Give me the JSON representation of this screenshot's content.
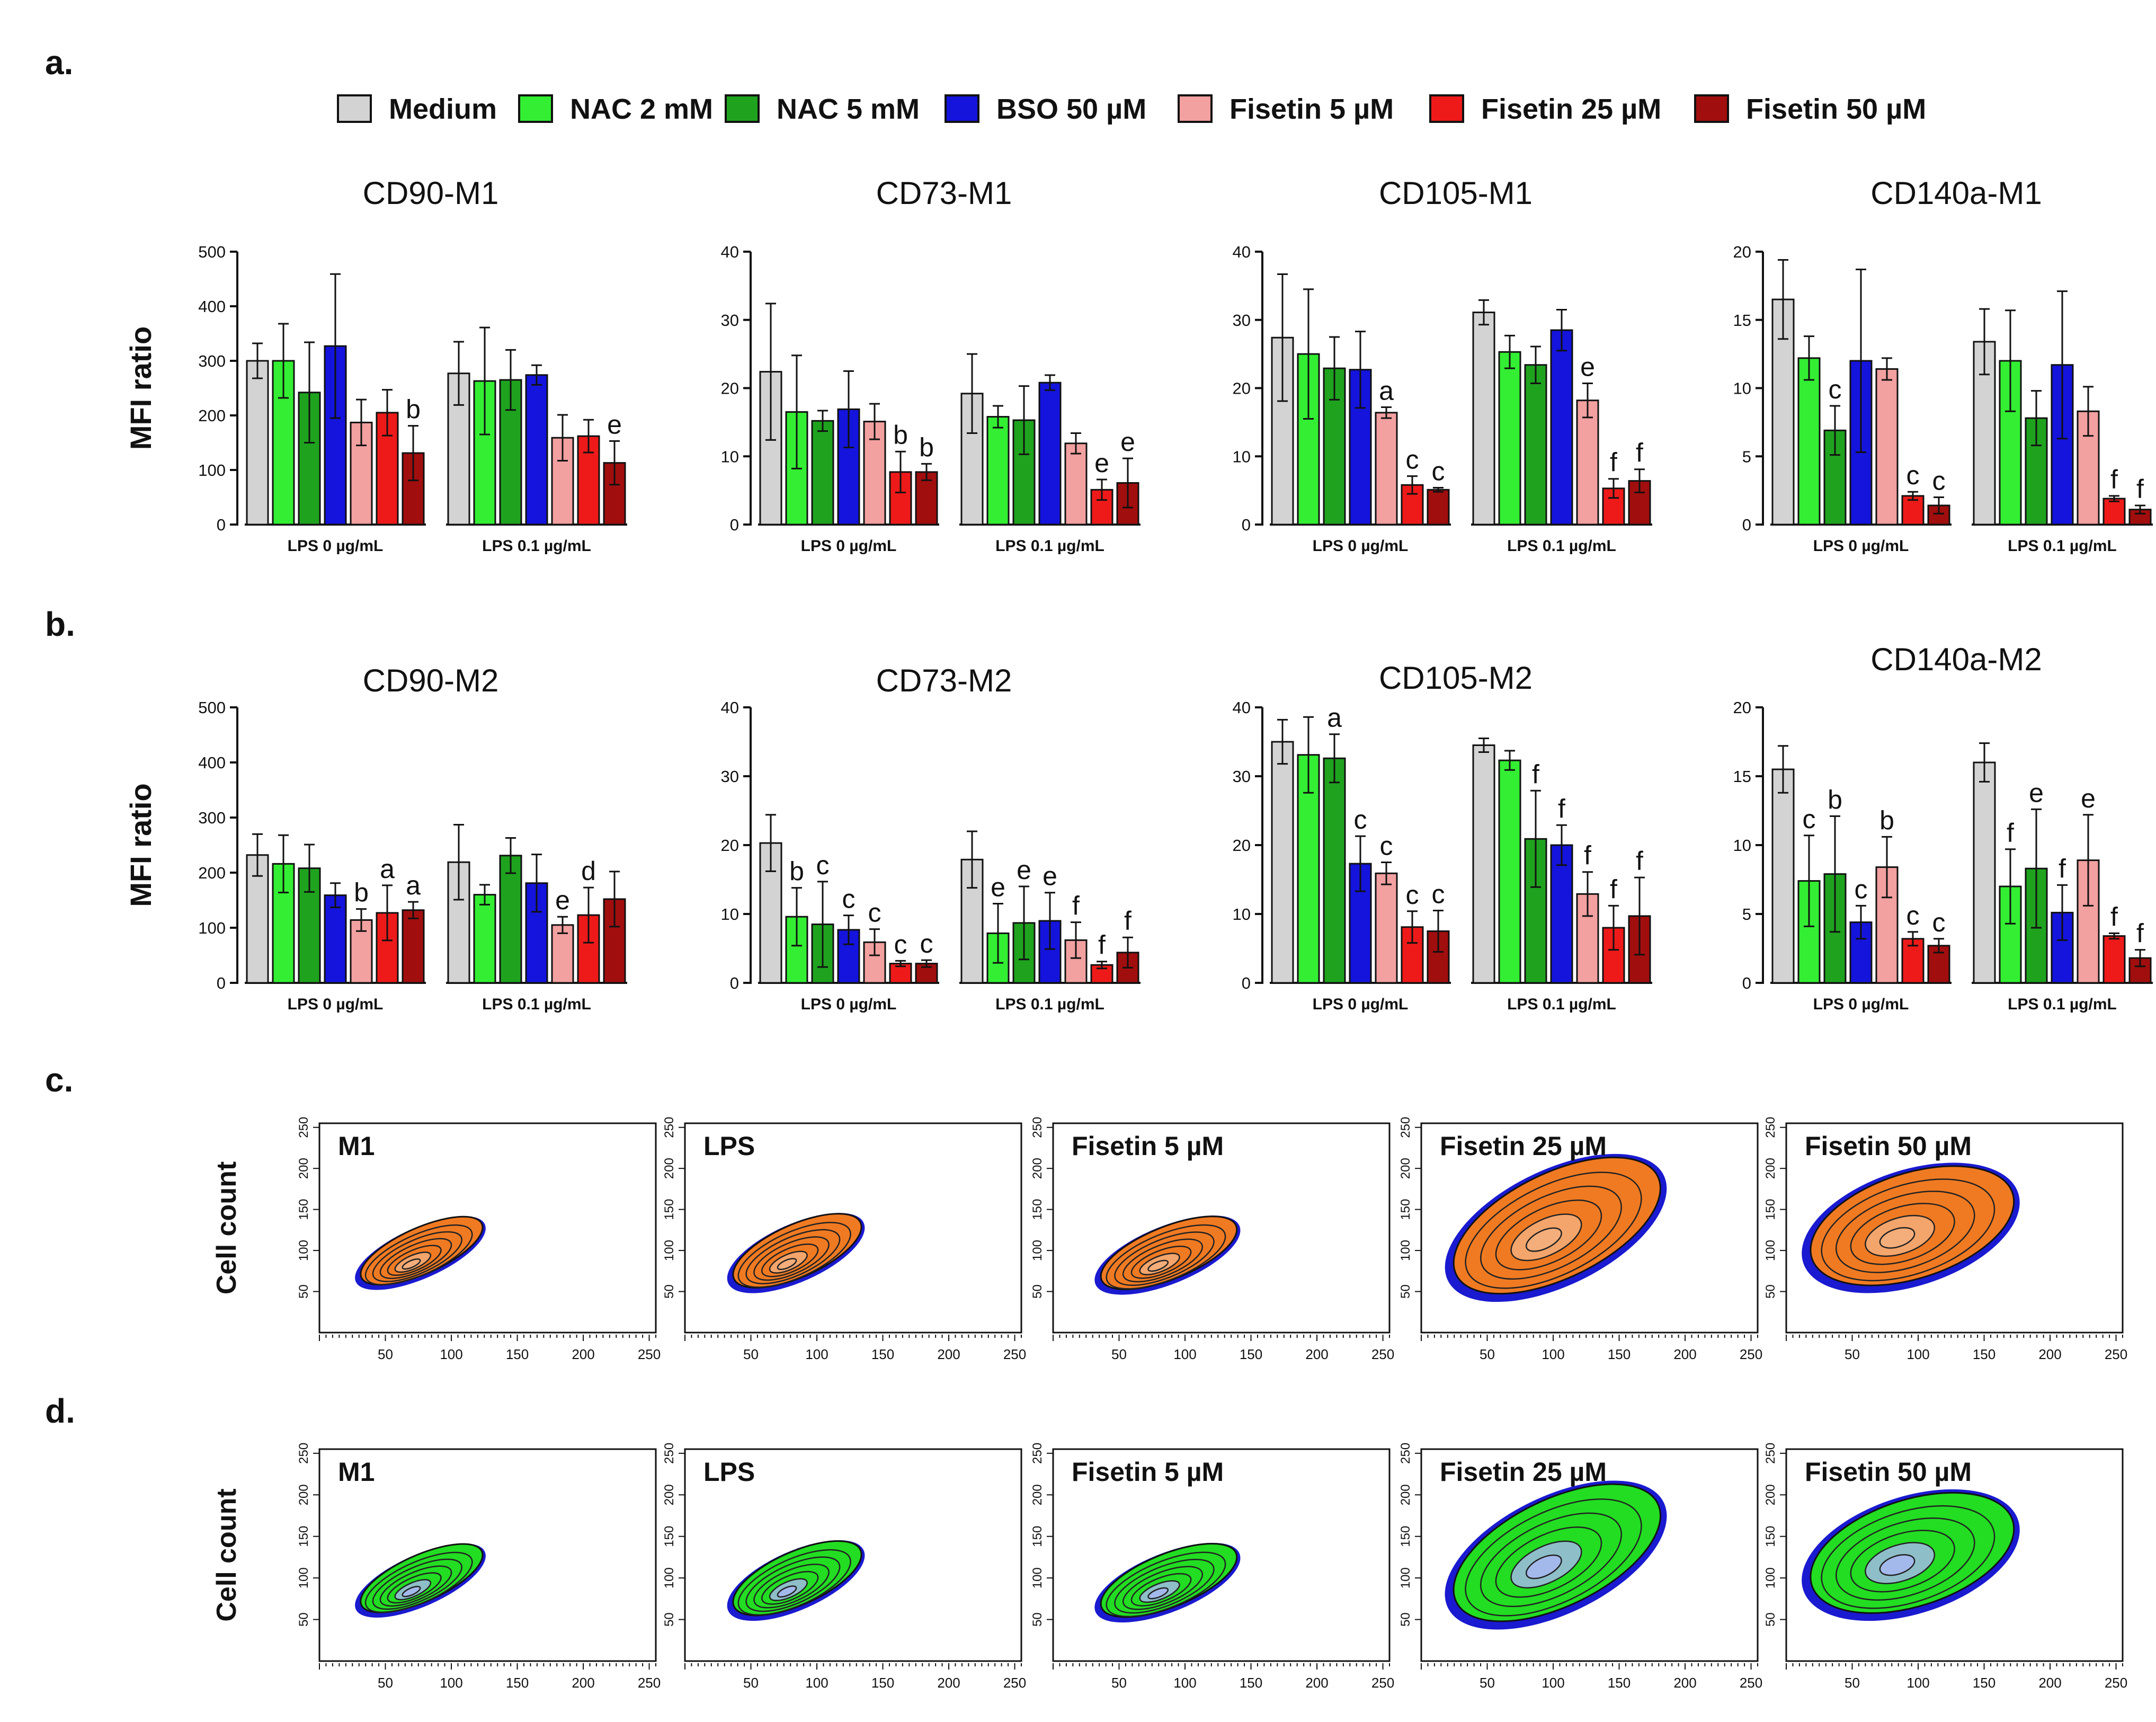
{
  "figure": {
    "panel_labels": [
      "a.",
      "b.",
      "c.",
      "d."
    ],
    "legend": [
      {
        "label": "Medium",
        "color": "#d3d3d3"
      },
      {
        "label": "NAC 2 mM",
        "color": "#33ee33"
      },
      {
        "label": "NAC 5 mM",
        "color": "#1fa31f"
      },
      {
        "label": "BSO 50 µM",
        "color": "#1414dc"
      },
      {
        "label": "Fisetin  5 µM",
        "color": "#f2a0a0"
      },
      {
        "label": "Fisetin  25 µM",
        "color": "#ee1a1a"
      },
      {
        "label": "Fisetin  50 µM",
        "color": "#a10e0e"
      }
    ],
    "bar_ylabel": "MFI ratio",
    "group_labels": [
      "LPS 0 µg/mL",
      "LPS 0.1 µg/mL"
    ],
    "contour_ylabel": "Cell count",
    "contour_y_ticks": [
      "50",
      "100",
      "150",
      "200",
      "250"
    ],
    "contour_x_ticks": [
      "50",
      "100",
      "150",
      "200",
      "250"
    ],
    "contour_titles": [
      "M1",
      "LPS",
      "Fisetin 5 µM",
      "Fisetin 25 µM",
      "Fisetin 50 µM"
    ],
    "contour_colors_c": [
      "#1a1ad0",
      "#f07a22",
      "#f4b080"
    ],
    "contour_colors_d": [
      "#1a1ad0",
      "#22dd22",
      "#aab8f4"
    ]
  },
  "chart_data": [
    {
      "type": "bar",
      "panel": "a",
      "title": "CD90-M1",
      "ylabel": "MFI ratio",
      "ylim": [
        0,
        500
      ],
      "yticks": [
        "0",
        "100",
        "200",
        "300",
        "400",
        "500"
      ],
      "categories": [
        "LPS 0 µg/mL",
        "LPS 0.1 µg/mL"
      ],
      "series": [
        {
          "name": "Medium",
          "values": [
            300,
            277
          ],
          "errors": [
            32,
            58
          ],
          "letters": [
            "",
            ""
          ]
        },
        {
          "name": "NAC 2 mM",
          "values": [
            300,
            263
          ],
          "errors": [
            68,
            98
          ],
          "letters": [
            "",
            ""
          ]
        },
        {
          "name": "NAC 5 mM",
          "values": [
            242,
            265
          ],
          "errors": [
            92,
            55
          ],
          "letters": [
            "",
            ""
          ]
        },
        {
          "name": "BSO 50 µM",
          "values": [
            327,
            274
          ],
          "errors": [
            132,
            18
          ],
          "letters": [
            "",
            ""
          ]
        },
        {
          "name": "Fisetin  5 µM",
          "values": [
            187,
            159
          ],
          "errors": [
            42,
            42
          ],
          "letters": [
            "",
            ""
          ]
        },
        {
          "name": "Fisetin  25 µM",
          "values": [
            205,
            162
          ],
          "errors": [
            42,
            30
          ],
          "letters": [
            "",
            ""
          ]
        },
        {
          "name": "Fisetin  50 µM",
          "values": [
            131,
            113
          ],
          "errors": [
            50,
            40
          ],
          "letters": [
            "b",
            "e"
          ]
        }
      ]
    },
    {
      "type": "bar",
      "panel": "a",
      "title": "CD73-M1",
      "ylabel": "MFI ratio",
      "ylim": [
        0,
        40
      ],
      "yticks": [
        "0",
        "10",
        "20",
        "30",
        "40"
      ],
      "categories": [
        "LPS 0 µg/mL",
        "LPS 0.1 µg/mL"
      ],
      "series": [
        {
          "name": "Medium",
          "values": [
            22.4,
            19.2
          ],
          "errors": [
            10,
            5.8
          ],
          "letters": [
            "",
            ""
          ]
        },
        {
          "name": "NAC 2 mM",
          "values": [
            16.5,
            15.8
          ],
          "errors": [
            8.3,
            1.6
          ],
          "letters": [
            "",
            ""
          ]
        },
        {
          "name": "NAC 5 mM",
          "values": [
            15.2,
            15.3
          ],
          "errors": [
            1.5,
            5
          ],
          "letters": [
            "",
            ""
          ]
        },
        {
          "name": "BSO 50 µM",
          "values": [
            16.9,
            20.8
          ],
          "errors": [
            5.6,
            1.1
          ],
          "letters": [
            "",
            ""
          ]
        },
        {
          "name": "Fisetin  5 µM",
          "values": [
            15.1,
            11.9
          ],
          "errors": [
            2.6,
            1.5
          ],
          "letters": [
            "",
            ""
          ]
        },
        {
          "name": "Fisetin  25 µM",
          "values": [
            7.7,
            5.1
          ],
          "errors": [
            3,
            1.5
          ],
          "letters": [
            "b",
            "e"
          ]
        },
        {
          "name": "Fisetin  50 µM",
          "values": [
            7.7,
            6.1
          ],
          "errors": [
            1.2,
            3.6
          ],
          "letters": [
            "b",
            "e"
          ]
        }
      ]
    },
    {
      "type": "bar",
      "panel": "a",
      "title": "CD105-M1",
      "ylabel": "MFI ratio",
      "ylim": [
        0,
        40
      ],
      "yticks": [
        "0",
        "10",
        "20",
        "30",
        "40"
      ],
      "categories": [
        "LPS 0 µg/mL",
        "LPS 0.1 µg/mL"
      ],
      "series": [
        {
          "name": "Medium",
          "values": [
            27.4,
            31.1
          ],
          "errors": [
            9.3,
            1.8
          ],
          "letters": [
            "",
            ""
          ]
        },
        {
          "name": "NAC 2 mM",
          "values": [
            25.0,
            25.3
          ],
          "errors": [
            9.5,
            2.4
          ],
          "letters": [
            "",
            ""
          ]
        },
        {
          "name": "NAC 5 mM",
          "values": [
            22.9,
            23.4
          ],
          "errors": [
            4.6,
            2.7
          ],
          "letters": [
            "",
            ""
          ]
        },
        {
          "name": "BSO 50 µM",
          "values": [
            22.7,
            28.5
          ],
          "errors": [
            5.6,
            3
          ],
          "letters": [
            "",
            ""
          ]
        },
        {
          "name": "Fisetin  5 µM",
          "values": [
            16.4,
            18.2
          ],
          "errors": [
            0.8,
            2.5
          ],
          "letters": [
            "a",
            "e"
          ]
        },
        {
          "name": "Fisetin  25 µM",
          "values": [
            5.8,
            5.3
          ],
          "errors": [
            1.3,
            1.4
          ],
          "letters": [
            "c",
            "f"
          ]
        },
        {
          "name": "Fisetin  50 µM",
          "values": [
            5.1,
            6.4
          ],
          "errors": [
            0.3,
            1.7
          ],
          "letters": [
            "c",
            "f"
          ]
        }
      ]
    },
    {
      "type": "bar",
      "panel": "a",
      "title": "CD140a-M1",
      "ylabel": "MFI ratio",
      "ylim": [
        0,
        20
      ],
      "yticks": [
        "0",
        "5",
        "10",
        "15",
        "20"
      ],
      "categories": [
        "LPS 0 µg/mL",
        "LPS 0.1 µg/mL"
      ],
      "series": [
        {
          "name": "Medium",
          "values": [
            16.5,
            13.4
          ],
          "errors": [
            2.9,
            2.4
          ],
          "letters": [
            "",
            ""
          ]
        },
        {
          "name": "NAC 2 mM",
          "values": [
            12.2,
            12.0
          ],
          "errors": [
            1.6,
            3.7
          ],
          "letters": [
            "",
            ""
          ]
        },
        {
          "name": "NAC 5 mM",
          "values": [
            6.9,
            7.8
          ],
          "errors": [
            1.8,
            2
          ],
          "letters": [
            "c",
            ""
          ]
        },
        {
          "name": "BSO 50 µM",
          "values": [
            12.0,
            11.7
          ],
          "errors": [
            6.7,
            5.4
          ],
          "letters": [
            "",
            ""
          ]
        },
        {
          "name": "Fisetin  5 µM",
          "values": [
            11.4,
            8.3
          ],
          "errors": [
            0.8,
            1.8
          ],
          "letters": [
            "",
            ""
          ]
        },
        {
          "name": "Fisetin  25 µM",
          "values": [
            2.1,
            1.9
          ],
          "errors": [
            0.3,
            0.2
          ],
          "letters": [
            "c",
            "f"
          ]
        },
        {
          "name": "Fisetin  50 µM",
          "values": [
            1.4,
            1.1
          ],
          "errors": [
            0.6,
            0.3
          ],
          "letters": [
            "c",
            "f"
          ]
        }
      ]
    },
    {
      "type": "bar",
      "panel": "b",
      "title": "CD90-M2",
      "ylabel": "MFI ratio",
      "ylim": [
        0,
        500
      ],
      "yticks": [
        "0",
        "100",
        "200",
        "300",
        "400",
        "500"
      ],
      "categories": [
        "LPS 0 µg/mL",
        "LPS 0.1 µg/mL"
      ],
      "series": [
        {
          "name": "Medium",
          "values": [
            232,
            219
          ],
          "errors": [
            38,
            68
          ],
          "letters": [
            "",
            ""
          ]
        },
        {
          "name": "NAC 2 mM",
          "values": [
            216,
            160
          ],
          "errors": [
            52,
            18
          ],
          "letters": [
            "",
            ""
          ]
        },
        {
          "name": "NAC 5 mM",
          "values": [
            208,
            231
          ],
          "errors": [
            43,
            32
          ],
          "letters": [
            "",
            ""
          ]
        },
        {
          "name": "BSO 50 µM",
          "values": [
            159,
            181
          ],
          "errors": [
            22,
            52
          ],
          "letters": [
            "",
            ""
          ]
        },
        {
          "name": "Fisetin  5 µM",
          "values": [
            114,
            105
          ],
          "errors": [
            20,
            15
          ],
          "letters": [
            "b",
            "e"
          ]
        },
        {
          "name": "Fisetin  25 µM",
          "values": [
            127,
            123
          ],
          "errors": [
            50,
            50
          ],
          "letters": [
            "a",
            "d"
          ]
        },
        {
          "name": "Fisetin  50 µM",
          "values": [
            132,
            152
          ],
          "errors": [
            15,
            50
          ],
          "letters": [
            "a",
            ""
          ]
        }
      ]
    },
    {
      "type": "bar",
      "panel": "b",
      "title": "CD73-M2",
      "ylabel": "MFI ratio",
      "ylim": [
        0,
        40
      ],
      "yticks": [
        "0",
        "10",
        "20",
        "30",
        "40"
      ],
      "categories": [
        "LPS 0 µg/mL",
        "LPS 0.1 µg/mL"
      ],
      "series": [
        {
          "name": "Medium",
          "values": [
            20.3,
            17.9
          ],
          "errors": [
            4.1,
            4.1
          ],
          "letters": [
            "",
            ""
          ]
        },
        {
          "name": "NAC 2 mM",
          "values": [
            9.6,
            7.2
          ],
          "errors": [
            4.2,
            4.3
          ],
          "letters": [
            "b",
            "e"
          ]
        },
        {
          "name": "NAC 5 mM",
          "values": [
            8.5,
            8.7
          ],
          "errors": [
            6.2,
            5.3
          ],
          "letters": [
            "c",
            "e"
          ]
        },
        {
          "name": "BSO 50 µM",
          "values": [
            7.7,
            9.0
          ],
          "errors": [
            2.1,
            4.1
          ],
          "letters": [
            "c",
            "e"
          ]
        },
        {
          "name": "Fisetin  5 µM",
          "values": [
            5.9,
            6.2
          ],
          "errors": [
            1.9,
            2.6
          ],
          "letters": [
            "c",
            "f"
          ]
        },
        {
          "name": "Fisetin  25 µM",
          "values": [
            2.8,
            2.6
          ],
          "errors": [
            0.4,
            0.5
          ],
          "letters": [
            "c",
            "f"
          ]
        },
        {
          "name": "Fisetin  50 µM",
          "values": [
            2.8,
            4.4
          ],
          "errors": [
            0.5,
            2.2
          ],
          "letters": [
            "c",
            "f"
          ]
        }
      ]
    },
    {
      "type": "bar",
      "panel": "b",
      "title": "CD105-M2",
      "ylabel": "MFI ratio",
      "ylim": [
        0,
        40
      ],
      "yticks": [
        "0",
        "10",
        "20",
        "30",
        "40"
      ],
      "categories": [
        "LPS 0 µg/mL",
        "LPS 0.1 µg/mL"
      ],
      "series": [
        {
          "name": "Medium",
          "values": [
            35.0,
            34.5
          ],
          "errors": [
            3.2,
            1
          ],
          "letters": [
            "",
            ""
          ]
        },
        {
          "name": "NAC 2 mM",
          "values": [
            33.1,
            32.3
          ],
          "errors": [
            5.5,
            1.4
          ],
          "letters": [
            "",
            ""
          ]
        },
        {
          "name": "NAC 5 mM",
          "values": [
            32.6,
            20.9
          ],
          "errors": [
            3.5,
            7
          ],
          "letters": [
            "a",
            "f"
          ]
        },
        {
          "name": "BSO 50 µM",
          "values": [
            17.3,
            20.0
          ],
          "errors": [
            4,
            2.9
          ],
          "letters": [
            "c",
            "f"
          ]
        },
        {
          "name": "Fisetin  5 µM",
          "values": [
            15.9,
            12.9
          ],
          "errors": [
            1.6,
            3.2
          ],
          "letters": [
            "c",
            "f"
          ]
        },
        {
          "name": "Fisetin  25 µM",
          "values": [
            8.1,
            8.0
          ],
          "errors": [
            2.3,
            3.2
          ],
          "letters": [
            "c",
            "f"
          ]
        },
        {
          "name": "Fisetin  50 µM",
          "values": [
            7.5,
            9.7
          ],
          "errors": [
            3,
            5.6
          ],
          "letters": [
            "c",
            "f"
          ]
        }
      ]
    },
    {
      "type": "bar",
      "panel": "b",
      "title": "CD140a-M2",
      "ylabel": "MFI ratio",
      "ylim": [
        0,
        20
      ],
      "yticks": [
        "0",
        "5",
        "10",
        "15",
        "20"
      ],
      "categories": [
        "LPS 0 µg/mL",
        "LPS 0.1 µg/mL"
      ],
      "series": [
        {
          "name": "Medium",
          "values": [
            15.5,
            16.0
          ],
          "errors": [
            1.7,
            1.4
          ],
          "letters": [
            "",
            ""
          ]
        },
        {
          "name": "NAC 2 mM",
          "values": [
            7.4,
            7.0
          ],
          "errors": [
            3.3,
            2.7
          ],
          "letters": [
            "c",
            "f"
          ]
        },
        {
          "name": "NAC 5 mM",
          "values": [
            7.9,
            8.3
          ],
          "errors": [
            4.2,
            4.3
          ],
          "letters": [
            "b",
            "e"
          ]
        },
        {
          "name": "BSO 50 µM",
          "values": [
            4.4,
            5.1
          ],
          "errors": [
            1.2,
            2
          ],
          "letters": [
            "c",
            "f"
          ]
        },
        {
          "name": "Fisetin  5 µM",
          "values": [
            8.4,
            8.9
          ],
          "errors": [
            2.2,
            3.3
          ],
          "letters": [
            "b",
            "e"
          ]
        },
        {
          "name": "Fisetin  25 µM",
          "values": [
            3.2,
            3.4
          ],
          "errors": [
            0.5,
            0.2
          ],
          "letters": [
            "c",
            "f"
          ]
        },
        {
          "name": "Fisetin  50 µM",
          "values": [
            2.7,
            1.8
          ],
          "errors": [
            0.5,
            0.6
          ],
          "letters": [
            "c",
            "f"
          ]
        }
      ]
    }
  ]
}
